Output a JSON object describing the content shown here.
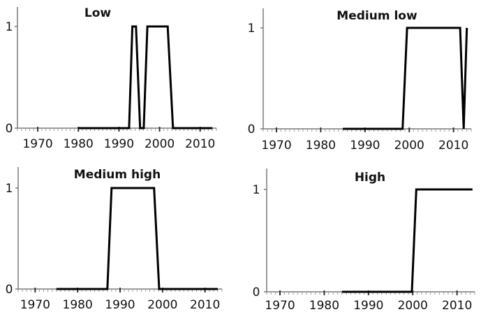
{
  "chart_data": [
    {
      "type": "line",
      "title": "Low",
      "xlim": [
        1965,
        2014
      ],
      "ylim": [
        0,
        1
      ],
      "x_ticks": [
        1970,
        1980,
        1990,
        2000,
        2010
      ],
      "y_ticks": [
        0,
        1
      ],
      "series": [
        {
          "x": [
            1980,
            1992.5,
            1993.3,
            1994.2,
            1995.2,
            1996.1,
            1997,
            2002,
            2003.3,
            2013
          ],
          "y": [
            0,
            0,
            1,
            1,
            0,
            0,
            1,
            1,
            0,
            0
          ]
        }
      ]
    },
    {
      "type": "line",
      "title": "Medium low",
      "xlim": [
        1967,
        2014
      ],
      "ylim": [
        0,
        1
      ],
      "x_ticks": [
        1970,
        1980,
        1990,
        2000,
        2010
      ],
      "y_ticks": [
        0,
        1
      ],
      "series": [
        {
          "x": [
            1985,
            1998.5,
            1999.5,
            2011.5,
            2012.3,
            2013
          ],
          "y": [
            0,
            0,
            1,
            1,
            0,
            1
          ]
        }
      ]
    },
    {
      "type": "line",
      "title": "Medium high",
      "xlim": [
        1966,
        2014
      ],
      "ylim": [
        0,
        1
      ],
      "x_ticks": [
        1970,
        1980,
        1990,
        2000,
        2010
      ],
      "y_ticks": [
        0,
        1
      ],
      "series": [
        {
          "x": [
            1975,
            1987,
            1988,
            1998,
            1999.2,
            2013
          ],
          "y": [
            0,
            0,
            1,
            1,
            0,
            0
          ]
        }
      ]
    },
    {
      "type": "line",
      "title": "High",
      "xlim": [
        1967,
        2014
      ],
      "ylim": [
        0,
        1
      ],
      "x_ticks": [
        1970,
        1980,
        1990,
        2000,
        2010
      ],
      "y_ticks": [
        0,
        1
      ],
      "series": [
        {
          "x": [
            1984,
            1999.8,
            2000.8,
            2013.5
          ],
          "y": [
            0,
            0,
            1,
            1
          ]
        }
      ]
    }
  ]
}
